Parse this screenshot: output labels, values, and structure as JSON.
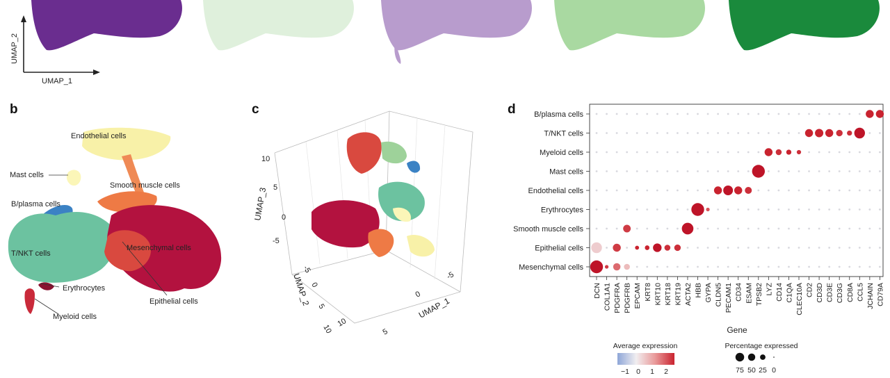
{
  "panels": {
    "b": "b",
    "c": "c",
    "d": "d"
  },
  "panel_a": {
    "umap_x_label": "UMAP_1",
    "umap_y_label": "UMAP_2",
    "blob_colors": [
      "#6a2d8f",
      "#dff0dc",
      "#b89ccd",
      "#a9d9a1",
      "#1a8a3c"
    ]
  },
  "panel_b": {
    "labels": {
      "endothelial": "Endothelial cells",
      "mast": "Mast cells",
      "smooth": "Smooth muscle cells",
      "bplasma": "B/plasma cells",
      "tnk": "T/NKT cells",
      "mesenchymal": "Mesenchymal cells",
      "erythrocytes": "Erythrocytes",
      "epithelial": "Epithelial cells",
      "myeloid": "Myeloid cells"
    },
    "colors": {
      "endothelial": "#f7f0a0",
      "mast": "#fbf6b8",
      "smooth": "#ee7a45",
      "bplasma": "#3b82c4",
      "tnk": "#6cc2a0",
      "mesenchymal": "#b3123f",
      "epithelial": "#d9493f",
      "myeloid": "#c92a3a",
      "erythrocytes": "#8a1130"
    }
  },
  "panel_c": {
    "xlabel": "UMAP_1",
    "ylabel": "UMAP_2",
    "zlabel": "UMAP_3",
    "z_ticks": [
      "10",
      "5",
      "0",
      "-5"
    ],
    "y_ticks": [
      "-5",
      "0",
      "5",
      "10"
    ],
    "x_ticks": [
      "10",
      "5",
      "0",
      "-5"
    ]
  },
  "chart_data": {
    "type": "scatter",
    "subtype": "dot-plot",
    "xlabel": "Gene",
    "rows": [
      "B/plasma cells",
      "T/NKT cells",
      "Myeloid cells",
      "Mast cells",
      "Endothelial cells",
      "Erythrocytes",
      "Smooth muscle cells",
      "Epithelial cells",
      "Mesenchymal cells"
    ],
    "genes": [
      "DCN",
      "COL1A1",
      "PDGFRA",
      "PDGFRB",
      "EPCAM",
      "KRT8",
      "KRT10",
      "KRT18",
      "KRT19",
      "ACTA2",
      "HBB",
      "GYPA",
      "CLDN5",
      "PECAM1",
      "CD34",
      "ESAM",
      "TPSB2",
      "LYZ",
      "CD14",
      "C1QA",
      "CLEC10A",
      "CD2",
      "CD3D",
      "CD3E",
      "CD3G",
      "CD8A",
      "CCL5",
      "JCHAIN",
      "CD79A"
    ],
    "color_range": [
      -1,
      2
    ],
    "size_range": [
      0,
      75
    ],
    "points": [
      {
        "cell": "Mesenchymal cells",
        "gene": "DCN",
        "pct": 75,
        "avg": 2.3
      },
      {
        "cell": "Mesenchymal cells",
        "gene": "COL1A1",
        "pct": 3,
        "avg": 1.8
      },
      {
        "cell": "Mesenchymal cells",
        "gene": "PDGFRA",
        "pct": 20,
        "avg": 1.4
      },
      {
        "cell": "Mesenchymal cells",
        "gene": "PDGFRB",
        "pct": 12,
        "avg": 0.6
      },
      {
        "cell": "Epithelial cells",
        "gene": "DCN",
        "pct": 50,
        "avg": 0.4
      },
      {
        "cell": "Epithelial cells",
        "gene": "PDGFRA",
        "pct": 25,
        "avg": 1.8
      },
      {
        "cell": "Epithelial cells",
        "gene": "EPCAM",
        "pct": 4,
        "avg": 2.0
      },
      {
        "cell": "Epithelial cells",
        "gene": "KRT8",
        "pct": 6,
        "avg": 2.0
      },
      {
        "cell": "Epithelial cells",
        "gene": "KRT10",
        "pct": 30,
        "avg": 2.1
      },
      {
        "cell": "Epithelial cells",
        "gene": "KRT18",
        "pct": 12,
        "avg": 1.9
      },
      {
        "cell": "Epithelial cells",
        "gene": "KRT19",
        "pct": 15,
        "avg": 1.9
      },
      {
        "cell": "Smooth muscle cells",
        "gene": "PDGFRB",
        "pct": 22,
        "avg": 1.8
      },
      {
        "cell": "Smooth muscle cells",
        "gene": "ACTA2",
        "pct": 60,
        "avg": 2.1
      },
      {
        "cell": "Erythrocytes",
        "gene": "HBB",
        "pct": 75,
        "avg": 2.2
      },
      {
        "cell": "Erythrocytes",
        "gene": "GYPA",
        "pct": 3,
        "avg": 1.6
      },
      {
        "cell": "Endothelial cells",
        "gene": "CLDN5",
        "pct": 25,
        "avg": 2.0
      },
      {
        "cell": "Endothelial cells",
        "gene": "PECAM1",
        "pct": 40,
        "avg": 2.1
      },
      {
        "cell": "Endothelial cells",
        "gene": "CD34",
        "pct": 25,
        "avg": 2.0
      },
      {
        "cell": "Endothelial cells",
        "gene": "ESAM",
        "pct": 18,
        "avg": 1.9
      },
      {
        "cell": "Mast cells",
        "gene": "TPSB2",
        "pct": 75,
        "avg": 2.2
      },
      {
        "cell": "Myeloid cells",
        "gene": "LYZ",
        "pct": 25,
        "avg": 2.0
      },
      {
        "cell": "Myeloid cells",
        "gene": "CD14",
        "pct": 12,
        "avg": 1.9
      },
      {
        "cell": "Myeloid cells",
        "gene": "C1QA",
        "pct": 8,
        "avg": 2.0
      },
      {
        "cell": "Myeloid cells",
        "gene": "CLEC10A",
        "pct": 5,
        "avg": 1.9
      },
      {
        "cell": "T/NKT cells",
        "gene": "CD2",
        "pct": 25,
        "avg": 2.0
      },
      {
        "cell": "T/NKT cells",
        "gene": "CD3D",
        "pct": 28,
        "avg": 2.0
      },
      {
        "cell": "T/NKT cells",
        "gene": "CD3E",
        "pct": 25,
        "avg": 2.0
      },
      {
        "cell": "T/NKT cells",
        "gene": "CD3G",
        "pct": 15,
        "avg": 1.9
      },
      {
        "cell": "T/NKT cells",
        "gene": "CD8A",
        "pct": 8,
        "avg": 1.9
      },
      {
        "cell": "T/NKT cells",
        "gene": "CCL5",
        "pct": 50,
        "avg": 2.1
      },
      {
        "cell": "B/plasma cells",
        "gene": "JCHAIN",
        "pct": 25,
        "avg": 2.0
      },
      {
        "cell": "B/plasma cells",
        "gene": "CD79A",
        "pct": 25,
        "avg": 2.0
      }
    ],
    "legend": {
      "color_title": "Average expression",
      "color_ticks": [
        "−1",
        "0",
        "1",
        "2"
      ],
      "size_title": "Percentage expressed",
      "size_ticks": [
        "75",
        "50",
        "25",
        "0"
      ],
      "size_values": [
        75,
        50,
        25,
        0
      ]
    }
  }
}
